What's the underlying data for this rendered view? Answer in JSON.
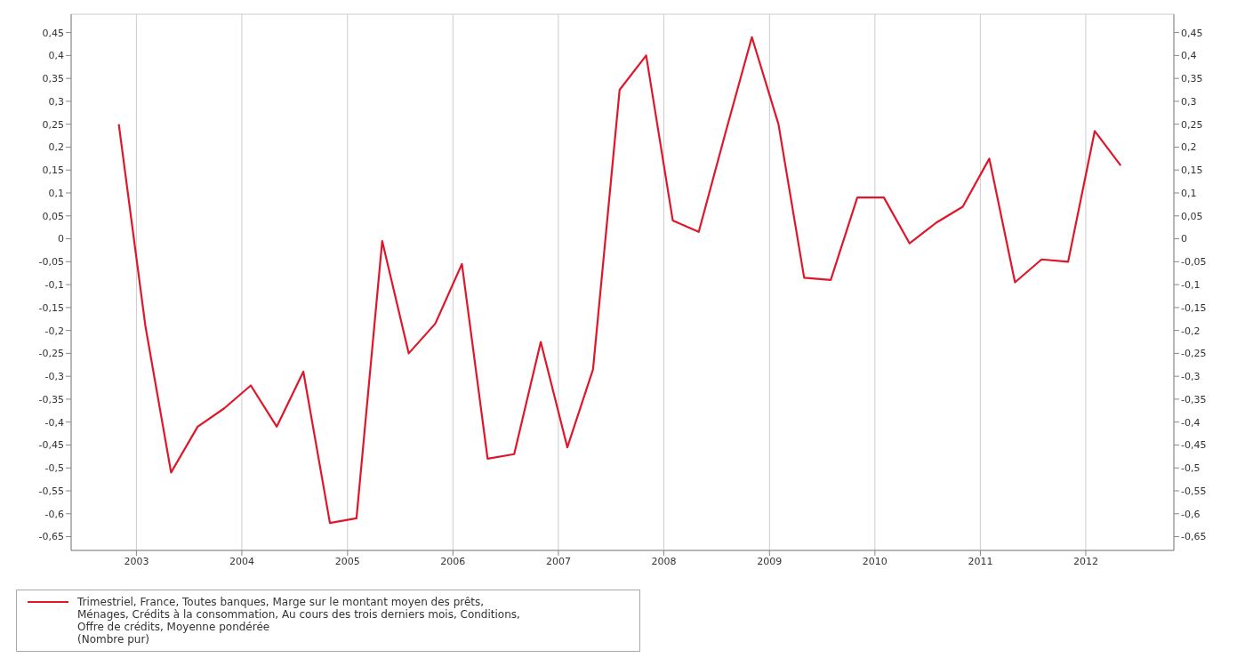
{
  "chart_data": {
    "type": "line",
    "x": [
      "2002-11",
      "2003-02",
      "2003-05",
      "2003-08",
      "2003-11",
      "2004-02",
      "2004-05",
      "2004-08",
      "2004-11",
      "2005-02",
      "2005-05",
      "2005-08",
      "2005-11",
      "2006-02",
      "2006-05",
      "2006-08",
      "2006-11",
      "2007-02",
      "2007-05",
      "2007-08",
      "2007-11",
      "2008-02",
      "2008-05",
      "2008-08",
      "2008-11",
      "2009-02",
      "2009-05",
      "2009-08",
      "2009-11",
      "2010-02",
      "2010-05",
      "2010-08",
      "2010-11",
      "2011-02",
      "2011-05",
      "2011-08",
      "2011-11",
      "2012-02",
      "2012-05"
    ],
    "series": [
      {
        "name": "Trimestriel, France, Toutes banques, Marge sur le montant moyen des prêts, Ménages, Crédits à la consommation, Au cours des trois derniers mois, Conditions, Offre de crédits, Moyenne pondérée\n(Nombre pur)",
        "color": "#e0162b",
        "values": [
          0.25,
          -0.19,
          -0.51,
          -0.41,
          -0.37,
          -0.32,
          -0.41,
          -0.29,
          -0.62,
          -0.61,
          -0.005,
          -0.25,
          -0.185,
          -0.055,
          -0.48,
          -0.47,
          -0.225,
          -0.455,
          -0.285,
          0.325,
          0.4,
          0.04,
          0.015,
          0.23,
          0.44,
          0.25,
          -0.085,
          -0.09,
          0.09,
          0.09,
          -0.01,
          0.035,
          0.07,
          0.175,
          -0.095,
          -0.045,
          -0.05,
          0.235,
          0.16
        ]
      }
    ],
    "xlim": [
      "2002-05-20",
      "2012-11-01"
    ],
    "xticks": [
      {
        "value": "2003",
        "label": "2003"
      },
      {
        "value": "2004",
        "label": "2004"
      },
      {
        "value": "2005",
        "label": "2005"
      },
      {
        "value": "2006",
        "label": "2006"
      },
      {
        "value": "2007",
        "label": "2007"
      },
      {
        "value": "2008",
        "label": "2008"
      },
      {
        "value": "2009",
        "label": "2009"
      },
      {
        "value": "2010",
        "label": "2010"
      },
      {
        "value": "2011",
        "label": "2011"
      },
      {
        "value": "2012",
        "label": "2012"
      }
    ],
    "ylim": [
      -0.68,
      0.49
    ],
    "yticks": [
      {
        "value": 0.45,
        "label": "0,45"
      },
      {
        "value": 0.4,
        "label": "0,4"
      },
      {
        "value": 0.35,
        "label": "0,35"
      },
      {
        "value": 0.3,
        "label": "0,3"
      },
      {
        "value": 0.25,
        "label": "0,25"
      },
      {
        "value": 0.2,
        "label": "0,2"
      },
      {
        "value": 0.15,
        "label": "0,15"
      },
      {
        "value": 0.1,
        "label": "0,1"
      },
      {
        "value": 0.05,
        "label": "0,05"
      },
      0,
      {
        "value": -0.05,
        "label": "-0,05"
      },
      {
        "value": -0.1,
        "label": "-0,1"
      },
      {
        "value": -0.15,
        "label": "-0,15"
      },
      {
        "value": -0.2,
        "label": "-0,2"
      },
      {
        "value": -0.25,
        "label": "-0,25"
      },
      {
        "value": -0.3,
        "label": "-0,3"
      },
      {
        "value": -0.35,
        "label": "-0,35"
      },
      {
        "value": -0.4,
        "label": "-0,4"
      },
      {
        "value": -0.45,
        "label": "-0,45"
      },
      {
        "value": -0.5,
        "label": "-0,5"
      },
      {
        "value": -0.55,
        "label": "-0,55"
      },
      {
        "value": -0.6,
        "label": "-0,6"
      },
      {
        "value": -0.65,
        "label": "-0,65"
      }
    ],
    "y2lim": [
      -0.68,
      0.49
    ],
    "y2ticks": [
      {
        "value": 0.45,
        "label": "0,45"
      },
      {
        "value": 0.4,
        "label": "0,4"
      },
      {
        "value": 0.35,
        "label": "0,35"
      },
      {
        "value": 0.3,
        "label": "0,3"
      },
      {
        "value": 0.25,
        "label": "0,25"
      },
      {
        "value": 0.2,
        "label": "0,2"
      },
      {
        "value": 0.15,
        "label": "0,15"
      },
      {
        "value": 0.1,
        "label": "0,1"
      },
      {
        "value": 0.05,
        "label": "0,05"
      },
      0,
      {
        "value": -0.05,
        "label": "-0,05"
      },
      {
        "value": -0.1,
        "label": "-0,1"
      },
      {
        "value": -0.15,
        "label": "-0,15"
      },
      {
        "value": -0.2,
        "label": "-0,2"
      },
      {
        "value": -0.25,
        "label": "-0,25"
      },
      {
        "value": -0.3,
        "label": "-0,3"
      },
      {
        "value": -0.35,
        "label": "-0,35"
      },
      {
        "value": -0.4,
        "label": "-0,4"
      },
      {
        "value": -0.45,
        "label": "-0,45"
      },
      {
        "value": -0.5,
        "label": "-0,5"
      },
      {
        "value": -0.55,
        "label": "-0,55"
      },
      {
        "value": -0.6,
        "label": "-0,6"
      },
      {
        "value": -0.65,
        "label": "-0,65"
      }
    ],
    "grid": true,
    "legend": "bottom",
    "marker": "none",
    "line_style": "solid"
  }
}
